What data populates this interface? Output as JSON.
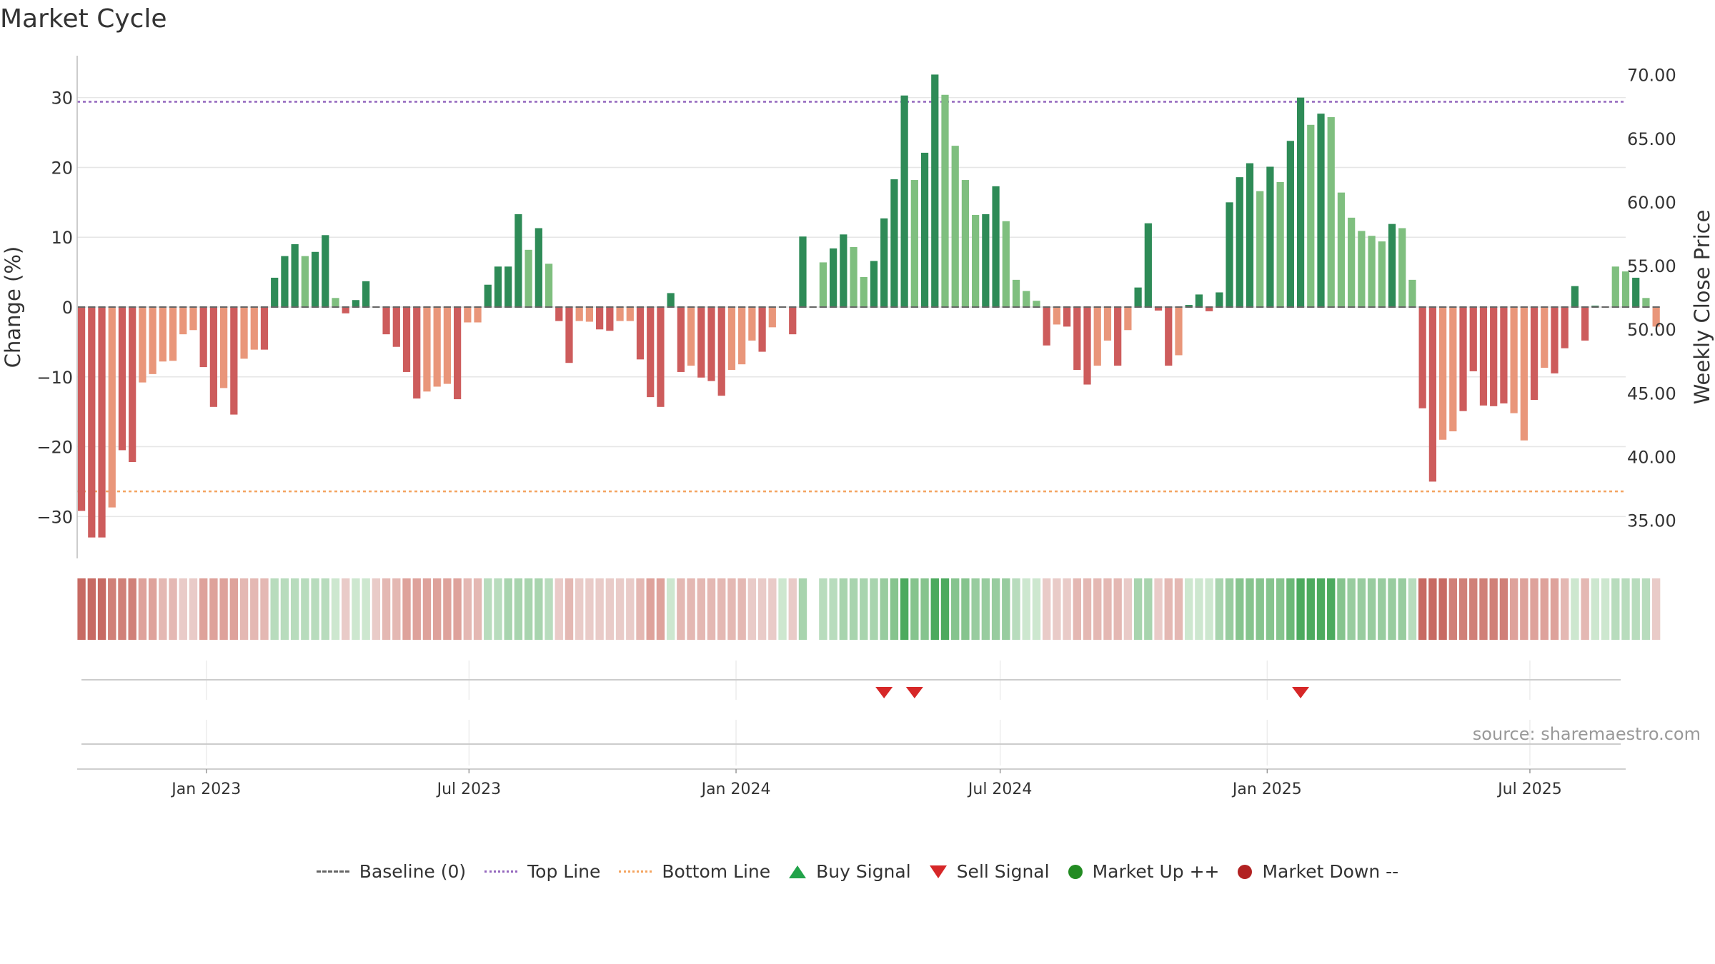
{
  "title": "Market Cycle",
  "source": "source: sharemaestro.com",
  "legend": {
    "baseline": "Baseline (0)",
    "top": "Top Line",
    "bottom": "Bottom Line",
    "buy": "Buy Signal",
    "sell": "Sell Signal",
    "up": "Market Up ++",
    "down": "Market Down --"
  },
  "colors": {
    "strong_green": "#2e8b57",
    "light_green": "#7fbf7f",
    "strong_red": "#cd5c5c",
    "light_red": "#e9967a",
    "top_line": "#9467bd",
    "bottom_line": "#f4a460",
    "sell": "#d62728",
    "buy": "#22a34a",
    "market_up": "#228b22",
    "market_down": "#b22222"
  },
  "chart_data": {
    "type": "bar",
    "ylabel": "Change (%)",
    "y2label": "Weekly Close Price",
    "ylim": [
      -36,
      36
    ],
    "y2lim": [
      32.0,
      71.5
    ],
    "yticks": [
      30,
      20,
      10,
      0,
      -10,
      -20,
      -30
    ],
    "ytick_labels": [
      "30",
      "20",
      "10",
      "0",
      "−10",
      "−20",
      "−30"
    ],
    "y2ticks": [
      70.0,
      65.0,
      60.0,
      55.0,
      50.0,
      45.0,
      40.0,
      35.0
    ],
    "y2tick_labels": [
      "70.00",
      "65.00",
      "60.00",
      "55.00",
      "50.00",
      "45.00",
      "40.00",
      "35.00"
    ],
    "top_line": 29.4,
    "bottom_line": -26.4,
    "x_start": "2022-10-07",
    "x_step_days": 7,
    "xlim": [
      "2022-10-04",
      "2025-09-05"
    ],
    "xticks": [
      "2023-01-01",
      "2023-07-01",
      "2024-01-01",
      "2024-07-01",
      "2025-01-01",
      "2025-07-01"
    ],
    "xtick_labels": [
      "Jan 2023",
      "Jul 2023",
      "Jan 2024",
      "Jul 2024",
      "Jan 2025",
      "Jul 2025"
    ],
    "values": [
      -29.2,
      -33.0,
      -33.0,
      -28.7,
      -20.5,
      -22.2,
      -10.8,
      -9.6,
      -7.8,
      -7.7,
      -3.9,
      -3.3,
      -8.6,
      -14.3,
      -11.6,
      -15.4,
      -7.4,
      -6.1,
      -6.1,
      4.2,
      7.3,
      9.0,
      7.3,
      7.9,
      10.3,
      1.3,
      -0.9,
      1.0,
      3.7,
      0,
      -3.9,
      -5.7,
      -9.3,
      -13.1,
      -12.1,
      -11.4,
      -11.0,
      -13.2,
      -2.2,
      -2.2,
      3.2,
      5.8,
      5.8,
      13.3,
      8.2,
      11.3,
      6.2,
      -2.0,
      -8.0,
      -2.0,
      -2.1,
      -3.2,
      -3.4,
      -2.0,
      -2.0,
      -7.5,
      -12.9,
      -14.3,
      2.0,
      -9.3,
      -8.4,
      -10.1,
      -10.6,
      -12.7,
      -9.0,
      -8.2,
      -4.8,
      -6.4,
      -2.9,
      0,
      -3.9,
      10.1,
      0,
      6.4,
      8.4,
      10.4,
      8.6,
      4.3,
      6.6,
      12.7,
      18.3,
      30.3,
      18.2,
      22.1,
      33.3,
      30.4,
      23.1,
      18.2,
      13.2,
      13.3,
      17.3,
      12.3,
      3.9,
      2.3,
      0.9,
      -5.5,
      -2.5,
      -2.8,
      -9.0,
      -11.1,
      -8.4,
      -4.8,
      -8.4,
      -3.3,
      2.8,
      12.0,
      -0.5,
      -8.4,
      -6.9,
      0.3,
      1.8,
      -0.6,
      2.1,
      15.0,
      18.6,
      20.6,
      16.6,
      20.1,
      17.9,
      23.8,
      30.0,
      26.1,
      27.7,
      27.2,
      16.4,
      12.8,
      10.9,
      10.2,
      9.4,
      11.9,
      11.3,
      3.9,
      -14.5,
      -25.0,
      -19.0,
      -17.8,
      -14.9,
      -9.2,
      -14.1,
      -14.2,
      -13.8,
      -15.2,
      -19.1,
      -13.3,
      -8.7,
      -9.5,
      -5.9,
      3.0,
      -4.8,
      0.2,
      0.1,
      5.8,
      5.1,
      4.2,
      1.3,
      -2.8
    ],
    "strong": [
      true,
      true,
      true,
      false,
      true,
      true,
      false,
      false,
      false,
      false,
      false,
      false,
      true,
      true,
      false,
      true,
      false,
      false,
      true,
      true,
      true,
      true,
      false,
      true,
      true,
      false,
      true,
      true,
      true,
      false,
      true,
      true,
      true,
      true,
      false,
      false,
      false,
      true,
      false,
      false,
      true,
      true,
      true,
      true,
      false,
      true,
      false,
      true,
      true,
      false,
      false,
      true,
      true,
      false,
      false,
      true,
      true,
      true,
      true,
      true,
      false,
      true,
      true,
      true,
      false,
      false,
      false,
      true,
      false,
      false,
      true,
      true,
      false,
      false,
      true,
      true,
      false,
      false,
      true,
      true,
      true,
      true,
      false,
      true,
      true,
      false,
      false,
      false,
      false,
      true,
      true,
      false,
      false,
      false,
      false,
      true,
      false,
      true,
      true,
      true,
      false,
      false,
      true,
      false,
      true,
      true,
      true,
      true,
      false,
      true,
      true,
      true,
      true,
      true,
      true,
      true,
      false,
      true,
      false,
      true,
      true,
      false,
      true,
      false,
      false,
      false,
      false,
      false,
      false,
      true,
      false,
      false,
      true,
      true,
      false,
      false,
      true,
      true,
      true,
      true,
      true,
      false,
      false,
      true,
      false,
      true,
      true,
      true,
      true,
      true,
      false,
      false,
      false,
      true
    ],
    "heat_colors": [
      "#c76a63",
      "#c76a63",
      "#c76a63",
      "#d08078",
      "#d08078",
      "#d08078",
      "#dea29b",
      "#dea29b",
      "#e4b8b3",
      "#e4b8b3",
      "#e9cbc8",
      "#e9cbc8",
      "#dea29b",
      "#dea29b",
      "#dea29b",
      "#dea29b",
      "#e4b8b3",
      "#e4b8b3",
      "#e4b8b3",
      "#b8dcbd",
      "#b8dcbd",
      "#b8dcbd",
      "#b8dcbd",
      "#b8dcbd",
      "#b8dcbd",
      "#cde7cf",
      "#e9cbc8",
      "#cde7cf",
      "#cde7cf",
      "#e9cbc8",
      "#e4b8b3",
      "#e4b8b3",
      "#dea29b",
      "#dea29b",
      "#dea29b",
      "#dea29b",
      "#dea29b",
      "#dea29b",
      "#e4b8b3",
      "#e4b8b3",
      "#b8dcbd",
      "#b8dcbd",
      "#a8d4ae",
      "#a8d4ae",
      "#a8d4ae",
      "#a8d4ae",
      "#b8dcbd",
      "#e9cbc8",
      "#e4b8b3",
      "#e9cbc8",
      "#e9cbc8",
      "#e9cbc8",
      "#e9cbc8",
      "#e9cbc8",
      "#e9cbc8",
      "#e4b8b3",
      "#dea29b",
      "#dea29b",
      "#cde7cf",
      "#e4b8b3",
      "#e4b8b3",
      "#e4b8b3",
      "#e4b8b3",
      "#e4b8b3",
      "#e4b8b3",
      "#e4b8b3",
      "#e9cbc8",
      "#e9cbc8",
      "#e9cbc8",
      "#cde7cf",
      "#e9cbc8",
      "#a8d4ae",
      "#ffffff",
      "#b8dcbd",
      "#b8dcbd",
      "#a8d4ae",
      "#a8d4ae",
      "#a8d4ae",
      "#a8d4ae",
      "#98cc9f",
      "#86c48e",
      "#4caa5e",
      "#86c48e",
      "#86c48e",
      "#4caa5e",
      "#4caa5e",
      "#86c48e",
      "#86c48e",
      "#98cc9f",
      "#98cc9f",
      "#98cc9f",
      "#98cc9f",
      "#b8dcbd",
      "#cde7cf",
      "#cde7cf",
      "#e9cbc8",
      "#e9cbc8",
      "#e9cbc8",
      "#e4b8b3",
      "#e4b8b3",
      "#e4b8b3",
      "#e4b8b3",
      "#e4b8b3",
      "#e9cbc8",
      "#a8d4ae",
      "#a8d4ae",
      "#e9cbc8",
      "#e4b8b3",
      "#e4b8b3",
      "#cde7cf",
      "#cde7cf",
      "#cde7cf",
      "#a8d4ae",
      "#98cc9f",
      "#86c48e",
      "#86c48e",
      "#86c48e",
      "#86c48e",
      "#86c48e",
      "#6bb877",
      "#4caa5e",
      "#4caa5e",
      "#4caa5e",
      "#4caa5e",
      "#86c48e",
      "#98cc9f",
      "#98cc9f",
      "#98cc9f",
      "#98cc9f",
      "#98cc9f",
      "#98cc9f",
      "#b8dcbd",
      "#c76a63",
      "#c76a63",
      "#c76a63",
      "#d08078",
      "#d08078",
      "#d08078",
      "#d08078",
      "#d08078",
      "#d08078",
      "#dea29b",
      "#dea29b",
      "#dea29b",
      "#dea29b",
      "#dea29b",
      "#e4b8b3",
      "#cde7cf",
      "#e4b8b3",
      "#cde7cf",
      "#cde7cf",
      "#b8dcbd",
      "#b8dcbd",
      "#b8dcbd",
      "#b8dcbd",
      "#e9cbc8"
    ],
    "sell_signals": [
      "2024-04-12",
      "2024-05-03",
      "2025-01-24"
    ],
    "buy_signals": [],
    "grid": true
  }
}
